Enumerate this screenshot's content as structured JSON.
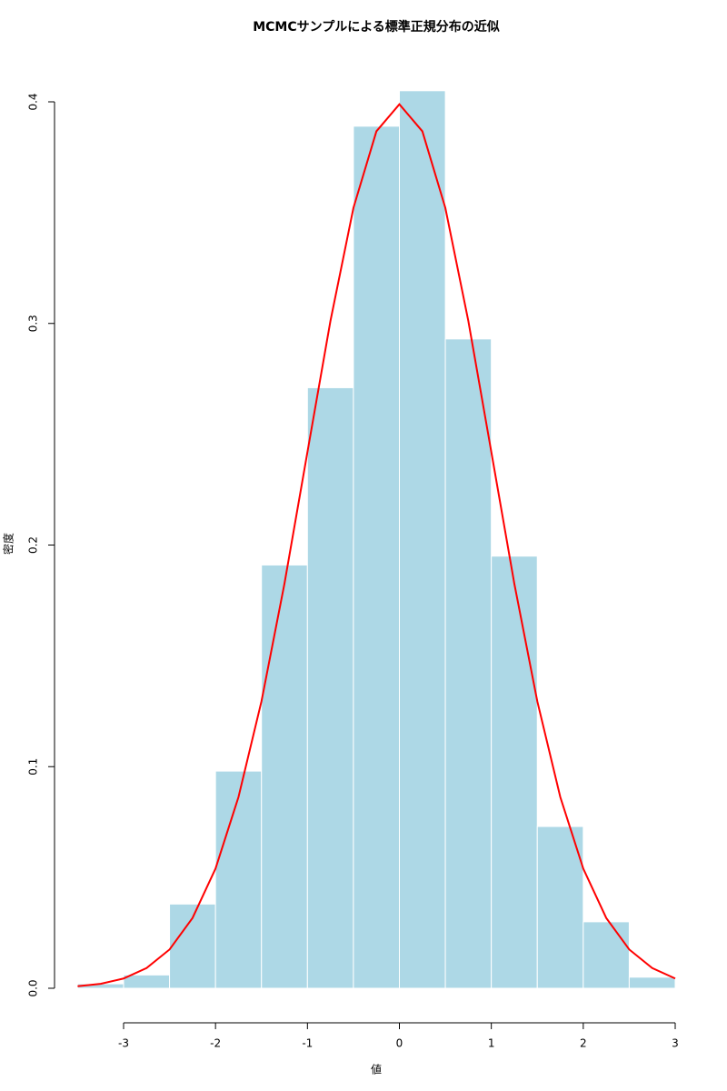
{
  "chart_data": {
    "type": "histogram",
    "title": "MCMCサンプルによる標準正規分布の近似",
    "x_label": "値",
    "y_label": "密度",
    "bins": [
      -3.5,
      -3,
      -2.5,
      -2,
      -1.5,
      -1,
      -0.5,
      0,
      0.5,
      1,
      1.5,
      2,
      2.5,
      3
    ],
    "values": [
      0.002,
      0.006,
      0.038,
      0.098,
      0.191,
      0.271,
      0.389,
      0.405,
      0.293,
      0.195,
      0.073,
      0.03,
      0.005
    ],
    "color": "#add8e6",
    "edge_color": "#ffffff",
    "xlim": [
      -3.5,
      3
    ],
    "ylim": [
      0,
      0.4
    ],
    "xticks": [
      -3,
      -2,
      -1,
      0,
      1,
      2,
      3
    ],
    "yticks": [
      {
        "value": 0,
        "label": "0.0"
      },
      0.1,
      0.2,
      0.3,
      0.4
    ],
    "curve": {
      "type": "line",
      "color": "#ff0000",
      "x": [
        -3.5,
        -3.25,
        -3,
        -2.75,
        -2.5,
        -2.25,
        -2,
        -1.75,
        -1.5,
        -1.25,
        -1,
        -0.75,
        -0.5,
        -0.25,
        0,
        0.25,
        0.5,
        0.75,
        1,
        1.25,
        1.5,
        1.75,
        2,
        2.25,
        2.5,
        2.75,
        3
      ],
      "values": [
        0.0009,
        0.002,
        0.0044,
        0.0091,
        0.0175,
        0.0317,
        0.054,
        0.0863,
        0.1295,
        0.1826,
        0.242,
        0.3011,
        0.3521,
        0.3867,
        0.3989,
        0.3867,
        0.3521,
        0.3011,
        0.242,
        0.1826,
        0.1295,
        0.0863,
        0.054,
        0.0317,
        0.0175,
        0.0091,
        0.0044
      ]
    }
  }
}
